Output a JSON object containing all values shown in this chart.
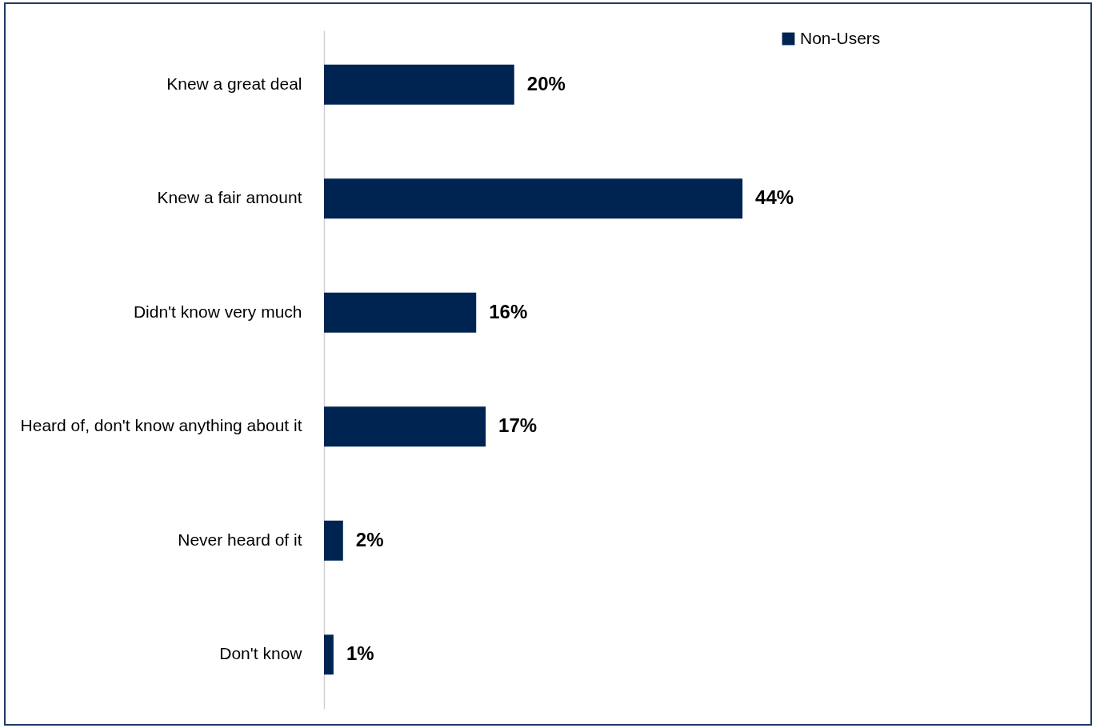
{
  "chart_data": {
    "type": "bar",
    "orientation": "horizontal",
    "categories": [
      "Knew a great deal",
      "Knew a fair amount",
      "Didn't know very much",
      "Heard of, don't know anything about it",
      "Never heard of it",
      "Don't know"
    ],
    "series": [
      {
        "name": "Non-Users",
        "color": "#002452",
        "values": [
          20,
          44,
          16,
          17,
          2,
          1
        ],
        "value_labels": [
          "20%",
          "44%",
          "16%",
          "17%",
          "2%",
          "1%"
        ]
      }
    ],
    "legend": "right",
    "grid": false
  }
}
